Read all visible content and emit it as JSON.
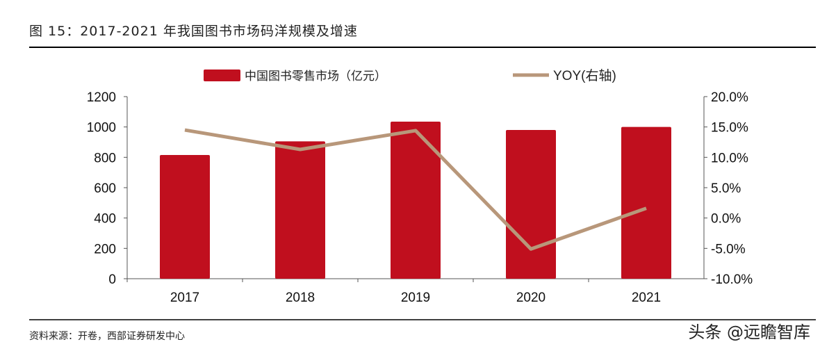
{
  "title": "图 15：2017-2021 年我国图书市场码洋规模及增速",
  "source": "资料来源：开卷，西部证券研发中心",
  "watermark": "头条 @远瞻智库",
  "colors": {
    "bar": "#C00F1E",
    "line": "#B8977A"
  },
  "chart_data": {
    "type": "bar+line",
    "categories": [
      "2017",
      "2018",
      "2019",
      "2020",
      "2021"
    ],
    "series": [
      {
        "name": "中国图书零售市场（亿元）",
        "type": "bar",
        "axis": "left",
        "values": [
          815,
          905,
          1035,
          980,
          1000
        ]
      },
      {
        "name": "YOY(右轴)",
        "type": "line",
        "axis": "right",
        "values": [
          14.5,
          11.3,
          14.4,
          -5.1,
          1.6
        ]
      }
    ],
    "left_axis": {
      "ylim": [
        0,
        1200
      ],
      "ticks": [
        "0",
        "200",
        "400",
        "600",
        "800",
        "1000",
        "1200"
      ]
    },
    "right_axis": {
      "ylim": [
        -10,
        20
      ],
      "ticks": [
        "-10.0%",
        "-5.0%",
        "0.0%",
        "5.0%",
        "10.0%",
        "15.0%",
        "20.0%"
      ]
    },
    "grid": false,
    "legend": "top"
  }
}
